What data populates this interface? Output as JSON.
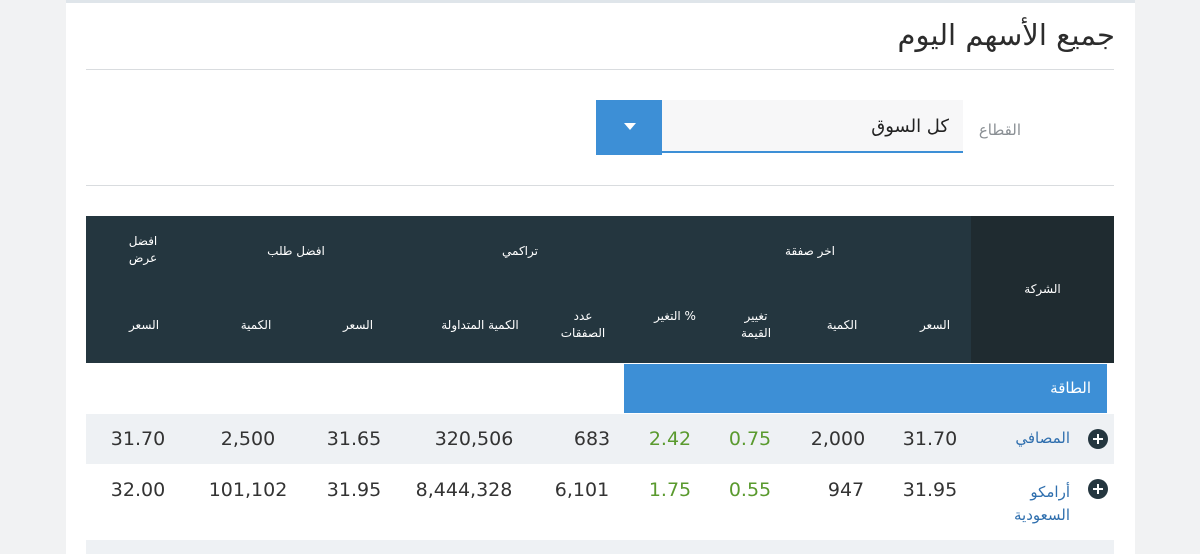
{
  "page": {
    "title": "جميع الأسهم اليوم"
  },
  "filter": {
    "label": "القطاع",
    "selected": "كل السوق"
  },
  "table": {
    "groups": {
      "last_deal": "اخر صفقة",
      "cumulative": "تراكمي",
      "best_bid": "افضل طلب",
      "best_offer": "افضل عرض"
    },
    "columns": {
      "company": "الشركة",
      "price": "السعر",
      "qty": "الكمية",
      "value_change": "تغيير القيمة",
      "pct_change": "% التغير",
      "num_deals": "عدد الصفقات",
      "traded_qty": "الكمية المتداولة",
      "bid_price": "السعر",
      "bid_qty": "الكمية",
      "offer_price": "السعر"
    },
    "section": "الطاقة",
    "rows": [
      {
        "company": "المصافي",
        "price": "31.70",
        "qty": "2,000",
        "value_change": "0.75",
        "pct_change": "2.42",
        "num_deals": "683",
        "traded_qty": "320,506",
        "bid_price": "31.65",
        "bid_qty": "2,500",
        "offer_price": "31.70"
      },
      {
        "company": "أرامكو السعودية",
        "price": "31.95",
        "qty": "947",
        "value_change": "0.55",
        "pct_change": "1.75",
        "num_deals": "6,101",
        "traded_qty": "8,444,328",
        "bid_price": "31.95",
        "bid_qty": "101,102",
        "offer_price": "32.00"
      }
    ]
  },
  "colors": {
    "accent": "#3d8fd6",
    "header_bg": "#24363f",
    "positive": "#5a9a2e",
    "link": "#2f6fae"
  }
}
